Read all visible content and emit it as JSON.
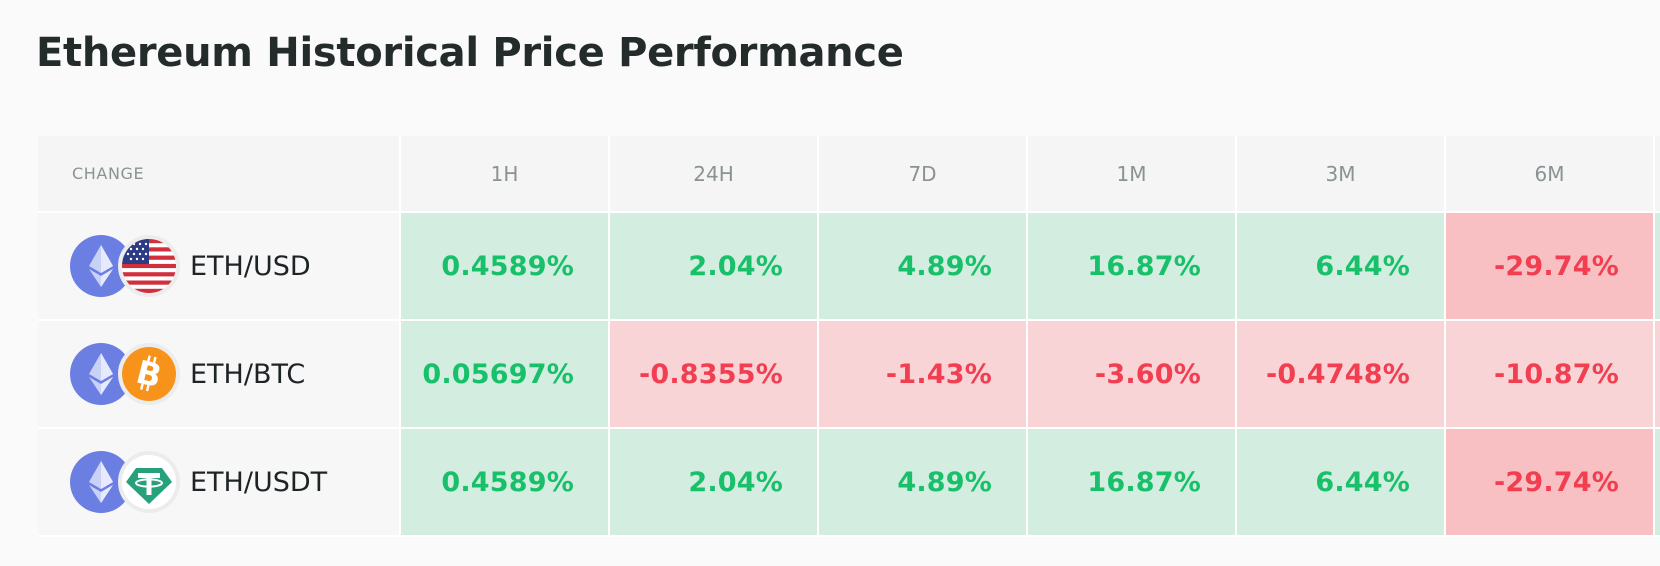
{
  "page": {
    "title": "Ethereum Historical Price Performance"
  },
  "table": {
    "header_label": "CHANGE",
    "periods": [
      "1H",
      "24H",
      "7D",
      "1M",
      "3M",
      "6M",
      ""
    ],
    "rows": [
      {
        "pair": "ETH/USD",
        "base_icon": "ethereum-icon",
        "quote_icon": "us-flag-icon",
        "values": [
          "0.4589%",
          "2.04%",
          "4.89%",
          "16.87%",
          "6.44%",
          "-29.74%",
          ""
        ],
        "directions": [
          "up",
          "up",
          "up",
          "up",
          "up",
          "down",
          "up"
        ]
      },
      {
        "pair": "ETH/BTC",
        "base_icon": "ethereum-icon",
        "quote_icon": "bitcoin-icon",
        "values": [
          "0.05697%",
          "-0.8355%",
          "-1.43%",
          "-3.60%",
          "-0.4748%",
          "-10.87%",
          ""
        ],
        "directions": [
          "up",
          "down",
          "down",
          "down",
          "down",
          "down",
          "down"
        ]
      },
      {
        "pair": "ETH/USDT",
        "base_icon": "ethereum-icon",
        "quote_icon": "tether-icon",
        "values": [
          "0.4589%",
          "2.04%",
          "4.89%",
          "16.87%",
          "6.44%",
          "-29.74%",
          ""
        ],
        "directions": [
          "up",
          "up",
          "up",
          "up",
          "up",
          "down",
          "up"
        ]
      }
    ]
  },
  "colors": {
    "positive_text": "#18c06a",
    "positive_bg": "#d3ede0",
    "negative_text": "#f23e51",
    "negative_bg": "#f9d4d6",
    "negative_strong_bg": "#f9c0c4",
    "ethereum": "#6b7fe3",
    "bitcoin": "#f7931a",
    "tether": "#26a17b"
  }
}
